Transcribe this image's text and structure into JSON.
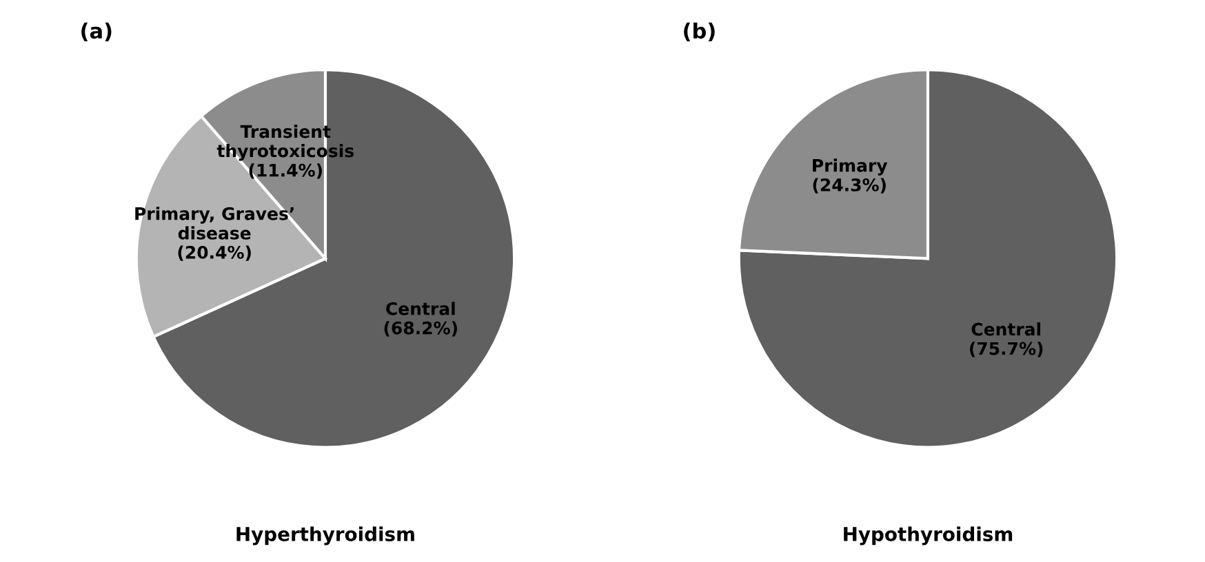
{
  "chart_data": [
    {
      "type": "pie",
      "title": "(a)",
      "xlabel": "Hyperthyroidism",
      "categories": [
        "Central",
        "Primary, Graves’\ndisease",
        "Transient\nthyrotoxicosis"
      ],
      "values": [
        68.2,
        20.4,
        11.4
      ],
      "value_labels": [
        "(68.2%)",
        "(20.4%)",
        "(11.4%)"
      ],
      "colors": [
        "#606060",
        "#b4b4b4",
        "#8c8c8c"
      ]
    },
    {
      "type": "pie",
      "title": "(b)",
      "xlabel": "Hypothyroidism",
      "categories": [
        "Central",
        "Primary"
      ],
      "values": [
        75.7,
        24.3
      ],
      "value_labels": [
        "(75.7%)",
        "(24.3%)"
      ],
      "colors": [
        "#606060",
        "#8c8c8c"
      ]
    }
  ]
}
